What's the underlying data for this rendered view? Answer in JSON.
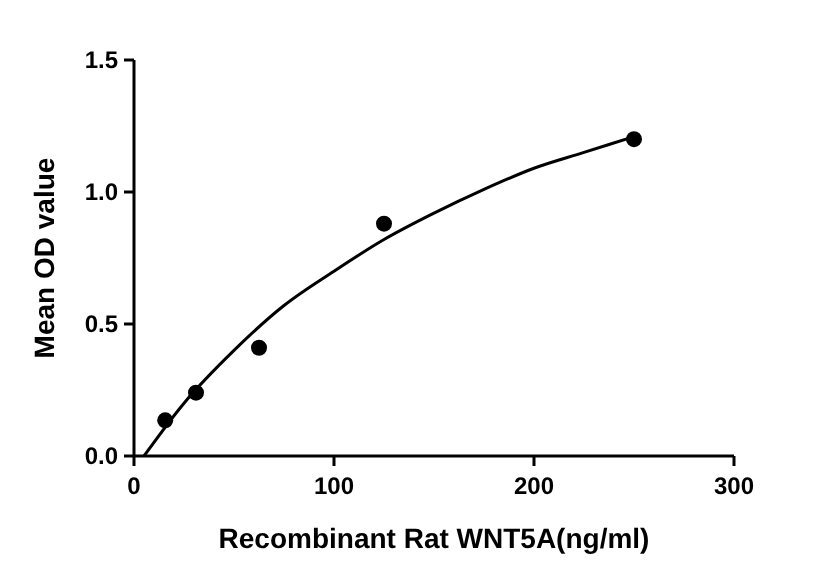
{
  "chart_data": {
    "type": "scatter",
    "xlabel": "Recombinant Rat WNT5A(ng/ml)",
    "ylabel": "Mean OD value",
    "x": [
      15.6,
      31,
      62.5,
      125,
      250
    ],
    "series": [
      {
        "color": "#000000",
        "marker": "circle",
        "values": [
          0.135,
          0.24,
          0.41,
          0.88,
          1.2
        ]
      },
      {
        "type": "line",
        "color": "#000000",
        "marker": "none",
        "line_style": "solid",
        "x": [
          5,
          25,
          50,
          75,
          100,
          125,
          150,
          175,
          200,
          225,
          250
        ],
        "values": [
          0,
          0.2,
          0.4,
          0.57,
          0.7,
          0.82,
          0.92,
          1.01,
          1.09,
          1.15,
          1.21
        ]
      }
    ],
    "xlim": [
      0,
      300
    ],
    "xticks": [
      0,
      100,
      200,
      300
    ],
    "ylim": [
      0,
      1.5
    ],
    "yticks": [
      {
        "value": 0,
        "label": "0.0"
      },
      {
        "value": 0.5,
        "label": "0.5"
      },
      {
        "value": 1,
        "label": "1.0"
      },
      {
        "value": 1.5,
        "label": "1.5"
      }
    ],
    "grid": false
  }
}
